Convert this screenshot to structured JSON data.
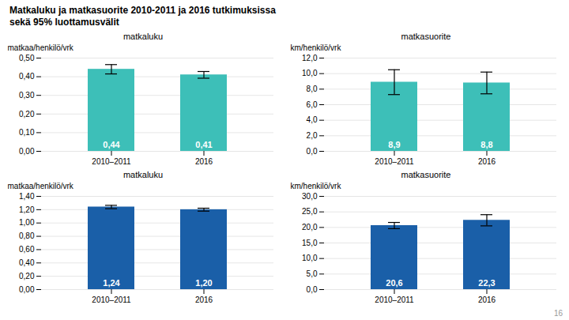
{
  "title": "Matkaluku ja matkasuorite 2010-2011 ja 2016 tutkimuksissa",
  "subtitle": "sekä 95% luottamusvälit",
  "annotations": [
    "16"
  ],
  "chart_data": [
    {
      "type": "bar",
      "title": "matkaluku",
      "ylabel": "matkaa/henkilö/vrk",
      "categories": [
        "2010–2011",
        "2016"
      ],
      "values": [
        0.44,
        0.41
      ],
      "errors": [
        0.025,
        0.018
      ],
      "color": "#3dbfb8",
      "ylim": [
        0,
        0.5
      ],
      "yticks": [
        {
          "value": 0.0,
          "label": "0,00"
        },
        {
          "value": 0.1,
          "label": "0,10"
        },
        {
          "value": 0.2,
          "label": "0,20"
        },
        {
          "value": 0.3,
          "label": "0,30"
        },
        {
          "value": 0.4,
          "label": "0,40"
        },
        {
          "value": 0.5,
          "label": "0,50"
        }
      ],
      "grid": true,
      "data_labels": true,
      "value_labels": [
        "0,44",
        "0,41"
      ]
    },
    {
      "type": "bar",
      "title": "matkasuorite",
      "ylabel": "km/henkilö/vrk",
      "categories": [
        "2010–2011",
        "2016"
      ],
      "values": [
        8.9,
        8.8
      ],
      "errors": [
        1.6,
        1.4
      ],
      "color": "#3dbfb8",
      "ylim": [
        0,
        12.0
      ],
      "yticks": [
        {
          "value": 0.0,
          "label": "0,0"
        },
        {
          "value": 2.0,
          "label": "2,0"
        },
        {
          "value": 4.0,
          "label": "4,0"
        },
        {
          "value": 6.0,
          "label": "6,0"
        },
        {
          "value": 8.0,
          "label": "8,0"
        },
        {
          "value": 10.0,
          "label": "10,0"
        },
        {
          "value": 12.0,
          "label": "12,0"
        }
      ],
      "grid": true,
      "data_labels": true,
      "value_labels": [
        "8,9",
        "8,8"
      ]
    },
    {
      "type": "bar",
      "title": "matkaluku",
      "ylabel": "matkaa/henkilö/vrk",
      "categories": [
        "2010–2011",
        "2016"
      ],
      "values": [
        1.24,
        1.2
      ],
      "errors": [
        0.025,
        0.022
      ],
      "color": "#1a5fa8",
      "ylim": [
        0,
        1.4
      ],
      "yticks": [
        {
          "value": 0.0,
          "label": "0,00"
        },
        {
          "value": 0.2,
          "label": "0,20"
        },
        {
          "value": 0.4,
          "label": "0,40"
        },
        {
          "value": 0.6,
          "label": "0,60"
        },
        {
          "value": 0.8,
          "label": "0,80"
        },
        {
          "value": 1.0,
          "label": "1,00"
        },
        {
          "value": 1.2,
          "label": "1,20"
        },
        {
          "value": 1.4,
          "label": "1,40"
        }
      ],
      "grid": true,
      "data_labels": true,
      "value_labels": [
        "1,24",
        "1,20"
      ]
    },
    {
      "type": "bar",
      "title": "matkasuorite",
      "ylabel": "km/henkilö/vrk",
      "categories": [
        "2010–2011",
        "2016"
      ],
      "values": [
        20.6,
        22.3
      ],
      "errors": [
        1.0,
        1.8
      ],
      "color": "#1a5fa8",
      "ylim": [
        0,
        30.0
      ],
      "yticks": [
        {
          "value": 0.0,
          "label": "0,0"
        },
        {
          "value": 5.0,
          "label": "5,0"
        },
        {
          "value": 10.0,
          "label": "10,0"
        },
        {
          "value": 15.0,
          "label": "15,0"
        },
        {
          "value": 20.0,
          "label": "20,0"
        },
        {
          "value": 25.0,
          "label": "25,0"
        },
        {
          "value": 30.0,
          "label": "30,0"
        }
      ],
      "grid": true,
      "data_labels": true,
      "value_labels": [
        "20,6",
        "22,3"
      ]
    }
  ]
}
